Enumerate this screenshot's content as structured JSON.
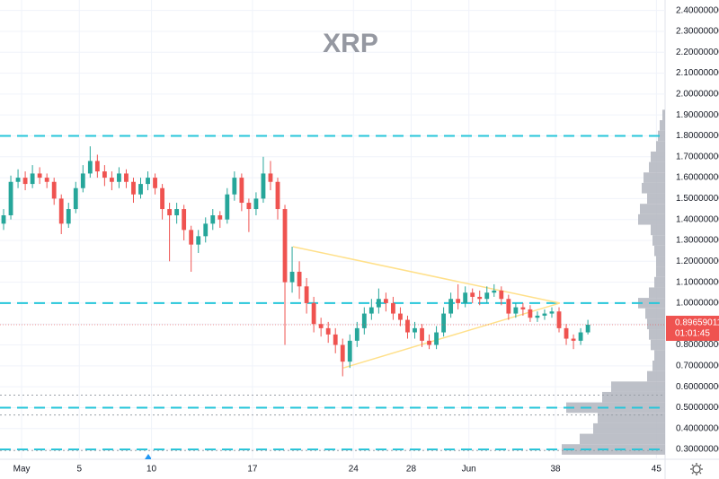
{
  "chart_data": {
    "type": "candlestick",
    "title": "XRP",
    "x": [
      -0.25,
      0.25,
      0.75,
      1.25,
      1.75,
      2.25,
      2.75,
      3.25,
      3.75,
      4.25,
      4.75,
      5.25,
      5.75,
      6.25,
      6.75,
      7.25,
      7.75,
      8.25,
      8.75,
      9.25,
      9.75,
      10.25,
      10.75,
      11.25,
      11.75,
      12.25,
      12.75,
      13.25,
      13.75,
      14.25,
      14.75,
      15.25,
      15.75,
      16.25,
      16.75,
      17.25,
      17.75,
      18.25,
      18.75,
      19.25,
      19.75,
      20.25,
      20.75,
      21.25,
      21.75,
      22.25,
      22.75,
      23.25,
      23.75,
      24.25,
      24.75,
      25.25,
      25.75,
      26.25,
      26.75,
      27.25,
      27.75,
      28.25,
      28.75,
      29.25,
      29.75,
      30.25,
      30.75,
      31.25,
      31.75,
      32.25,
      32.75,
      33.25,
      33.75,
      34.25,
      34.75,
      35.25,
      35.75,
      36.25,
      36.75,
      37.25,
      37.75,
      38.25,
      38.75,
      39.25,
      39.75,
      40.25
    ],
    "open": [
      1.38,
      1.42,
      1.58,
      1.6,
      1.57,
      1.62,
      1.6,
      1.58,
      1.5,
      1.38,
      1.45,
      1.55,
      1.62,
      1.68,
      1.63,
      1.6,
      1.58,
      1.62,
      1.58,
      1.52,
      1.57,
      1.6,
      1.55,
      1.45,
      1.42,
      1.45,
      1.35,
      1.28,
      1.32,
      1.38,
      1.42,
      1.4,
      1.52,
      1.6,
      1.48,
      1.45,
      1.5,
      1.62,
      1.58,
      1.45,
      1.1,
      1.15,
      1.08,
      1.0,
      0.9,
      0.88,
      0.85,
      0.8,
      0.72,
      0.82,
      0.88,
      0.95,
      0.98,
      1.02,
      1.0,
      0.95,
      0.92,
      0.86,
      0.88,
      0.82,
      0.8,
      0.86,
      0.95,
      1.02,
      1.0,
      1.05,
      1.03,
      1.02,
      1.05,
      1.06,
      1.02,
      0.95,
      0.98,
      0.97,
      0.93,
      0.94,
      0.95,
      0.96,
      0.88,
      0.83,
      0.82,
      0.86
    ],
    "high": [
      1.45,
      1.61,
      1.64,
      1.63,
      1.66,
      1.65,
      1.62,
      1.6,
      1.52,
      1.48,
      1.58,
      1.66,
      1.75,
      1.71,
      1.66,
      1.63,
      1.65,
      1.64,
      1.6,
      1.6,
      1.63,
      1.62,
      1.57,
      1.48,
      1.48,
      1.47,
      1.37,
      1.35,
      1.41,
      1.45,
      1.44,
      1.55,
      1.63,
      1.62,
      1.5,
      1.53,
      1.7,
      1.68,
      1.6,
      1.47,
      1.27,
      1.2,
      1.12,
      1.03,
      0.93,
      0.91,
      0.88,
      0.83,
      0.85,
      0.91,
      0.98,
      1.02,
      1.07,
      1.05,
      1.03,
      0.98,
      0.94,
      0.91,
      0.9,
      0.85,
      0.89,
      0.98,
      1.05,
      1.09,
      1.08,
      1.07,
      1.06,
      1.08,
      1.09,
      1.08,
      1.04,
      1.0,
      1.0,
      0.99,
      0.96,
      0.97,
      0.98,
      0.98,
      0.9,
      0.85,
      0.88,
      0.92
    ],
    "low": [
      1.35,
      1.4,
      1.55,
      1.54,
      1.55,
      1.57,
      1.55,
      1.47,
      1.33,
      1.36,
      1.43,
      1.53,
      1.6,
      1.6,
      1.56,
      1.54,
      1.55,
      1.55,
      1.48,
      1.5,
      1.54,
      1.52,
      1.4,
      1.2,
      1.38,
      1.3,
      1.15,
      1.24,
      1.29,
      1.35,
      1.36,
      1.38,
      1.49,
      1.44,
      1.34,
      1.42,
      1.48,
      1.54,
      1.4,
      0.8,
      1.05,
      1.02,
      0.95,
      0.86,
      0.84,
      0.81,
      0.76,
      0.65,
      0.69,
      0.79,
      0.85,
      0.92,
      0.95,
      0.96,
      0.92,
      0.89,
      0.83,
      0.83,
      0.79,
      0.78,
      0.78,
      0.84,
      0.93,
      0.97,
      0.98,
      1.0,
      0.99,
      1.0,
      1.03,
      0.99,
      0.92,
      0.93,
      0.94,
      0.91,
      0.91,
      0.92,
      0.93,
      0.86,
      0.8,
      0.78,
      0.8,
      0.85
    ],
    "close": [
      1.42,
      1.58,
      1.6,
      1.57,
      1.62,
      1.6,
      1.58,
      1.5,
      1.38,
      1.45,
      1.55,
      1.62,
      1.68,
      1.63,
      1.6,
      1.58,
      1.62,
      1.58,
      1.52,
      1.57,
      1.6,
      1.55,
      1.45,
      1.42,
      1.45,
      1.35,
      1.28,
      1.32,
      1.38,
      1.42,
      1.4,
      1.52,
      1.6,
      1.48,
      1.45,
      1.5,
      1.62,
      1.58,
      1.45,
      1.1,
      1.15,
      1.08,
      1.0,
      0.9,
      0.88,
      0.85,
      0.8,
      0.72,
      0.82,
      0.88,
      0.95,
      0.98,
      1.02,
      1.0,
      0.95,
      0.92,
      0.86,
      0.88,
      0.82,
      0.8,
      0.86,
      0.95,
      1.02,
      1.0,
      1.05,
      1.03,
      1.02,
      1.05,
      1.06,
      1.02,
      0.95,
      0.98,
      0.97,
      0.93,
      0.94,
      0.95,
      0.96,
      0.88,
      0.83,
      0.82,
      0.86,
      0.8966
    ],
    "up_color": "#26a69a",
    "down_color": "#ef5350",
    "xlim": [
      -0.5,
      45.6
    ],
    "ylim": [
      0.253,
      2.45
    ],
    "xticks": [
      {
        "value": 1,
        "label": "May"
      },
      5,
      10,
      17,
      24,
      28,
      {
        "value": 32,
        "label": "Jun"
      },
      38,
      45
    ],
    "yticks": [
      {
        "value": 0.3,
        "label": "0.30000000"
      },
      {
        "value": 0.4,
        "label": "0.40000000"
      },
      {
        "value": 0.5,
        "label": "0.50000000"
      },
      {
        "value": 0.6,
        "label": "0.60000000"
      },
      {
        "value": 0.7,
        "label": "0.70000000"
      },
      {
        "value": 0.8,
        "label": "0.80000000"
      },
      {
        "value": 0.9,
        "label": "0.90000000"
      },
      {
        "value": 1.0,
        "label": "1.00000000"
      },
      {
        "value": 1.1,
        "label": "1.10000000"
      },
      {
        "value": 1.2,
        "label": "1.20000000"
      },
      {
        "value": 1.3,
        "label": "1.30000000"
      },
      {
        "value": 1.4,
        "label": "1.40000000"
      },
      {
        "value": 1.5,
        "label": "1.50000000"
      },
      {
        "value": 1.6,
        "label": "1.60000000"
      },
      {
        "value": 1.7,
        "label": "1.70000000"
      },
      {
        "value": 1.8,
        "label": "1.80000000"
      },
      {
        "value": 1.9,
        "label": "1.90000000"
      },
      {
        "value": 2.0,
        "label": "2.00000000"
      },
      {
        "value": 2.1,
        "label": "2.10000000"
      },
      {
        "value": 2.2,
        "label": "2.20000000"
      },
      {
        "value": 2.3,
        "label": "2.30000000"
      },
      {
        "value": 2.4,
        "label": "2.40000000"
      }
    ],
    "grid": true,
    "last_price": {
      "value": 0.8966,
      "label": "0.89659011",
      "countdown": "01:01:45",
      "color": "#ef5350"
    },
    "hlines": [
      1.8,
      1.0,
      0.5,
      0.3
    ],
    "hline_color": "#26c6da",
    "dotted_lines": [
      0.56,
      0.465,
      0.295
    ],
    "trendlines": [
      [
        19.8,
        1.27,
        38.3,
        1.0
      ],
      [
        23.3,
        0.69,
        38.3,
        1.0
      ]
    ],
    "trendline_color": "#ffe08a",
    "volume_profile": {
      "prices": [
        0.3,
        0.35,
        0.4,
        0.45,
        0.5,
        0.55,
        0.6,
        0.65,
        0.7,
        0.75,
        0.8,
        0.85,
        0.9,
        0.95,
        1.0,
        1.05,
        1.1,
        1.15,
        1.2,
        1.25,
        1.3,
        1.35,
        1.4,
        1.45,
        1.5,
        1.55,
        1.6,
        1.65,
        1.7,
        1.75,
        1.8,
        1.85,
        1.9
      ],
      "values": [
        115,
        95,
        80,
        75,
        110,
        70,
        60,
        20,
        14,
        12,
        16,
        18,
        20,
        22,
        30,
        18,
        12,
        10,
        10,
        12,
        14,
        16,
        30,
        28,
        20,
        26,
        24,
        18,
        16,
        10,
        8,
        6,
        3
      ],
      "color": "#b2b5be"
    }
  }
}
